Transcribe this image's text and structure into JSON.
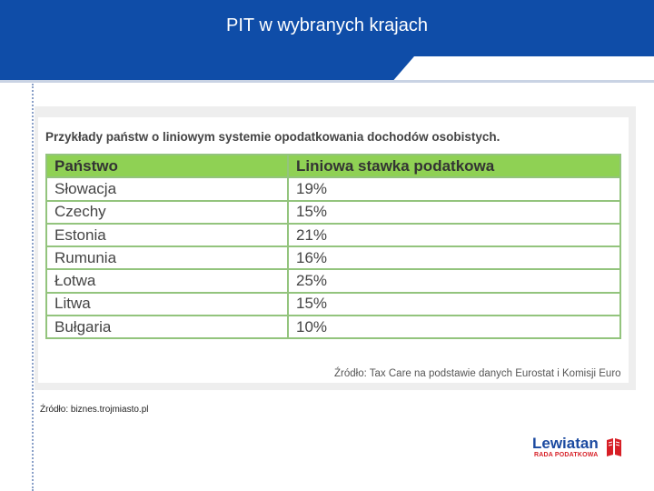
{
  "slide": {
    "title": "PIT w wybranych krajach"
  },
  "table": {
    "caption": "Przykłady państw o liniowym systemie opodatkowania dochodów osobistych.",
    "headers": [
      "Państwo",
      "Liniowa stawka podatkowa"
    ],
    "rows": [
      [
        "Słowacja",
        "19%"
      ],
      [
        "Czechy",
        "15%"
      ],
      [
        "Estonia",
        "21%"
      ],
      [
        "Rumunia",
        "16%"
      ],
      [
        "Łotwa",
        "25%"
      ],
      [
        "Litwa",
        "15%"
      ],
      [
        "Bułgaria",
        "10%"
      ]
    ],
    "source": "Źródło: Tax Care na podstawie danych Eurostat i Komisji Euro"
  },
  "footer": {
    "source": "Źródło: biznes.trojmiasto.pl"
  },
  "logo": {
    "name": "Lewiatan",
    "subtitle": "RADA PODATKOWA"
  },
  "colors": {
    "header": "#0f4da8",
    "table_header": "#8fd154",
    "border": "#93c47d",
    "logo_red": "#d71f26"
  }
}
